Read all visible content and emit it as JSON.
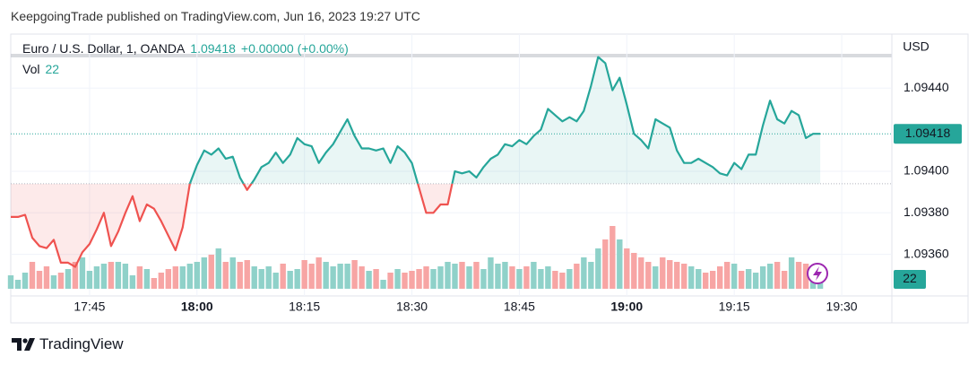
{
  "header": {
    "publisher": "KeepgoingTrade published on TradingView.com, Jun 16, 2023 19:27 UTC"
  },
  "footer": {
    "brand": "TradingView"
  },
  "chart_data": {
    "type": "baseline",
    "legend": {
      "symbol": "Euro / U.S. Dollar, 1, OANDA",
      "price": "1.09418",
      "change": "+0.00000 (+0.00%)",
      "volume_label": "Vol",
      "volume": "22"
    },
    "axis_label": "USD",
    "x": [
      "17:34",
      "17:35",
      "17:36",
      "17:37",
      "17:38",
      "17:39",
      "17:40",
      "17:41",
      "17:42",
      "17:43",
      "17:44",
      "17:45",
      "17:46",
      "17:47",
      "17:48",
      "17:49",
      "17:50",
      "17:51",
      "17:52",
      "17:53",
      "17:54",
      "17:55",
      "17:56",
      "17:57",
      "17:58",
      "17:59",
      "18:00",
      "18:01",
      "18:02",
      "18:03",
      "18:04",
      "18:05",
      "18:06",
      "18:07",
      "18:08",
      "18:09",
      "18:10",
      "18:11",
      "18:12",
      "18:13",
      "18:14",
      "18:15",
      "18:16",
      "18:17",
      "18:18",
      "18:19",
      "18:20",
      "18:21",
      "18:22",
      "18:23",
      "18:24",
      "18:25",
      "18:26",
      "18:27",
      "18:28",
      "18:29",
      "18:30",
      "18:31",
      "18:32",
      "18:33",
      "18:34",
      "18:35",
      "18:36",
      "18:37",
      "18:38",
      "18:39",
      "18:40",
      "18:41",
      "18:42",
      "18:43",
      "18:44",
      "18:45",
      "18:46",
      "18:47",
      "18:48",
      "18:49",
      "18:50",
      "18:51",
      "18:52",
      "18:53",
      "18:54",
      "18:55",
      "18:56",
      "18:57",
      "18:58",
      "18:59",
      "19:00",
      "19:01",
      "19:02",
      "19:03",
      "19:04",
      "19:05",
      "19:06",
      "19:07",
      "19:08",
      "19:09",
      "19:10",
      "19:11",
      "19:12",
      "19:13",
      "19:14",
      "19:15",
      "19:16",
      "19:17",
      "19:18",
      "19:19",
      "19:20",
      "19:21",
      "19:22",
      "19:23",
      "19:24",
      "19:25",
      "19:26",
      "19:27"
    ],
    "values": [
      1.09378,
      1.09378,
      1.09379,
      1.09368,
      1.09364,
      1.09363,
      1.09367,
      1.09356,
      1.09356,
      1.09354,
      1.09361,
      1.09365,
      1.09372,
      1.0938,
      1.09364,
      1.09371,
      1.0938,
      1.09388,
      1.09376,
      1.09384,
      1.09382,
      1.09376,
      1.09369,
      1.09362,
      1.09373,
      1.09394,
      1.09403,
      1.0941,
      1.09408,
      1.09411,
      1.09406,
      1.09407,
      1.09397,
      1.09391,
      1.09396,
      1.09402,
      1.09404,
      1.09409,
      1.09404,
      1.09408,
      1.09416,
      1.09413,
      1.09412,
      1.09404,
      1.09409,
      1.09413,
      1.09419,
      1.09425,
      1.09417,
      1.09411,
      1.09411,
      1.0941,
      1.09411,
      1.09404,
      1.09412,
      1.09409,
      1.09404,
      1.09392,
      1.0938,
      1.0938,
      1.09384,
      1.09384,
      1.094,
      1.09399,
      1.094,
      1.09397,
      1.09402,
      1.09406,
      1.09408,
      1.09413,
      1.09412,
      1.09415,
      1.09413,
      1.09417,
      1.0942,
      1.0943,
      1.09427,
      1.09424,
      1.09426,
      1.09424,
      1.09429,
      1.09441,
      1.09455,
      1.09452,
      1.09439,
      1.09445,
      1.09432,
      1.09418,
      1.09415,
      1.09411,
      1.09425,
      1.09423,
      1.09421,
      1.0941,
      1.09404,
      1.09404,
      1.09406,
      1.09404,
      1.09402,
      1.09399,
      1.09398,
      1.09404,
      1.09401,
      1.09408,
      1.09408,
      1.09422,
      1.09434,
      1.09425,
      1.09423,
      1.09429,
      1.09427,
      1.09416,
      1.09418,
      1.09418
    ],
    "volume": [
      45,
      30,
      54,
      90,
      60,
      75,
      45,
      54,
      66,
      90,
      105,
      60,
      75,
      84,
      90,
      90,
      84,
      45,
      75,
      66,
      36,
      54,
      66,
      75,
      75,
      84,
      90,
      105,
      114,
      135,
      90,
      105,
      90,
      96,
      75,
      66,
      75,
      54,
      84,
      60,
      66,
      96,
      84,
      105,
      90,
      75,
      84,
      84,
      96,
      75,
      60,
      66,
      30,
      54,
      66,
      54,
      60,
      66,
      75,
      66,
      75,
      90,
      84,
      90,
      75,
      90,
      66,
      105,
      84,
      90,
      75,
      66,
      75,
      90,
      66,
      75,
      60,
      54,
      66,
      84,
      105,
      90,
      135,
      165,
      210,
      165,
      135,
      120,
      105,
      90,
      75,
      105,
      96,
      90,
      84,
      75,
      66,
      54,
      60,
      75,
      90,
      84,
      60,
      66,
      54,
      75,
      84,
      90,
      60,
      105,
      90,
      84,
      36,
      22
    ],
    "baseline": 1.09394,
    "up_color": "#26a69a",
    "down_color": "#ef5350",
    "volume_up_color": "#8fd1c9",
    "volume_down_color": "#f7a5a4",
    "xlim": [
      "17:34",
      "19:37"
    ],
    "xticks": [
      "17:45",
      "18:00",
      "18:15",
      "18:30",
      "18:45",
      "19:00",
      "19:15",
      "19:30"
    ],
    "ylim": [
      1.0934,
      1.09466
    ],
    "yticks": [
      {
        "value": 1.0944,
        "label": "1.09440"
      },
      {
        "value": 1.094,
        "label": "1.09400"
      },
      {
        "value": 1.0938,
        "label": "1.09380"
      },
      {
        "value": 1.0936,
        "label": "1.09360"
      }
    ],
    "grid": true
  }
}
